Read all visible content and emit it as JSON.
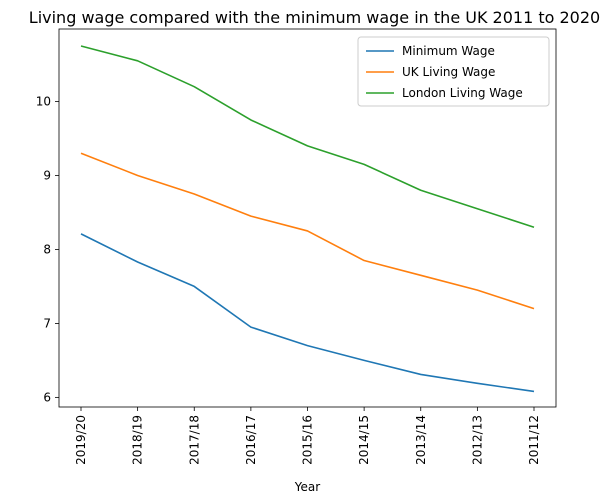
{
  "chart_data": {
    "type": "line",
    "title": "Living wage compared with the minimum wage in the UK 2011 to 2020",
    "xlabel": "Year",
    "ylabel": "",
    "categories": [
      "2019/20",
      "2018/19",
      "2017/18",
      "2016/17",
      "2015/16",
      "2014/15",
      "2013/14",
      "2012/13",
      "2011/12"
    ],
    "yticks": [
      6,
      7,
      8,
      9,
      10
    ],
    "ylim": [
      5.87,
      10.98
    ],
    "grid": false,
    "legend_position": "upper-right",
    "series": [
      {
        "name": "Minimum Wage",
        "color": "#1f77b4",
        "values": [
          8.21,
          7.83,
          7.5,
          6.95,
          6.7,
          6.5,
          6.31,
          6.19,
          6.08
        ]
      },
      {
        "name": "UK Living Wage",
        "color": "#ff7f0e",
        "values": [
          9.3,
          9.0,
          8.75,
          8.45,
          8.25,
          7.85,
          7.65,
          7.45,
          7.2
        ]
      },
      {
        "name": "London Living Wage",
        "color": "#2ca02c",
        "values": [
          10.75,
          10.55,
          10.2,
          9.75,
          9.4,
          9.15,
          8.8,
          8.55,
          8.3
        ]
      }
    ]
  }
}
